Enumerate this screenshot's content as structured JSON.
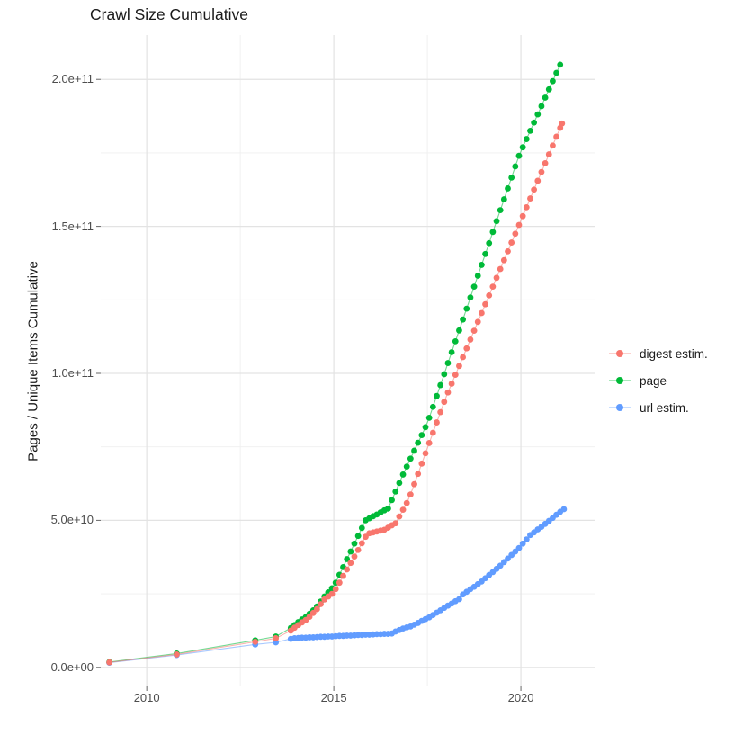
{
  "title": "Crawl Size Cumulative",
  "legend": {
    "items": [
      {
        "label": "digest estim.",
        "color": "#F8766D"
      },
      {
        "label": "page",
        "color": "#00BA38"
      },
      {
        "label": "url estim.",
        "color": "#619CFF"
      }
    ]
  },
  "colors": {
    "grid_major": "#e3e3e3",
    "grid_minor": "#efefef",
    "tick_mark": "#666666",
    "axis_text": "#4d4d4d",
    "title_text": "#1a1a1a"
  },
  "chart_data": {
    "type": "line",
    "title": "Crawl Size Cumulative",
    "xlabel": "",
    "ylabel": "Pages / Unique Items Cumulative",
    "value_unit": "1e9 pages (values below are billions)",
    "grid": true,
    "legend_position": "right",
    "x_range": [
      2008.77,
      2021.97
    ],
    "y_range_e9": [
      -6.49,
      215.06
    ],
    "x_ticks": {
      "major": [
        2010,
        2015,
        2020
      ],
      "minor": [
        2012.5,
        2017.5
      ],
      "labels": [
        "2010",
        "2015",
        "2020"
      ]
    },
    "y_ticks": {
      "major_e9": [
        0,
        50,
        100,
        150,
        200
      ],
      "minor_e9": [
        25,
        75,
        125,
        175
      ],
      "labels": [
        "0.0e+00",
        "5.0e+10",
        "1.0e+11",
        "1.5e+11",
        "2.0e+11"
      ]
    },
    "series": [
      {
        "name": "url estim.",
        "color": "#619CFF",
        "points": [
          [
            2009.0,
            1.6
          ],
          [
            2010.8,
            4.2
          ],
          [
            2012.9,
            7.8
          ],
          [
            2013.45,
            8.5
          ],
          [
            2013.85,
            9.7
          ],
          [
            2013.95,
            9.9
          ],
          [
            2014.05,
            10.0
          ],
          [
            2014.15,
            10.1
          ],
          [
            2014.25,
            10.1
          ],
          [
            2014.35,
            10.2
          ],
          [
            2014.45,
            10.2
          ],
          [
            2014.55,
            10.3
          ],
          [
            2014.65,
            10.4
          ],
          [
            2014.75,
            10.4
          ],
          [
            2014.85,
            10.5
          ],
          [
            2014.95,
            10.5
          ],
          [
            2015.05,
            10.6
          ],
          [
            2015.15,
            10.7
          ],
          [
            2015.25,
            10.7
          ],
          [
            2015.35,
            10.8
          ],
          [
            2015.45,
            10.8
          ],
          [
            2015.55,
            10.9
          ],
          [
            2015.65,
            11.0
          ],
          [
            2015.75,
            11.0
          ],
          [
            2015.85,
            11.1
          ],
          [
            2015.95,
            11.1
          ],
          [
            2016.05,
            11.2
          ],
          [
            2016.15,
            11.3
          ],
          [
            2016.25,
            11.3
          ],
          [
            2016.35,
            11.4
          ],
          [
            2016.45,
            11.4
          ],
          [
            2016.55,
            11.5
          ],
          [
            2016.65,
            12.2
          ],
          [
            2016.75,
            12.7
          ],
          [
            2016.85,
            13.2
          ],
          [
            2016.95,
            13.6
          ],
          [
            2017.05,
            13.9
          ],
          [
            2017.15,
            14.5
          ],
          [
            2017.25,
            15.1
          ],
          [
            2017.35,
            15.8
          ],
          [
            2017.45,
            16.4
          ],
          [
            2017.55,
            17.0
          ],
          [
            2017.65,
            17.8
          ],
          [
            2017.75,
            18.6
          ],
          [
            2017.85,
            19.4
          ],
          [
            2017.95,
            20.2
          ],
          [
            2018.05,
            21.0
          ],
          [
            2018.15,
            21.7
          ],
          [
            2018.25,
            22.5
          ],
          [
            2018.35,
            23.2
          ],
          [
            2018.45,
            24.8
          ],
          [
            2018.55,
            25.7
          ],
          [
            2018.65,
            26.6
          ],
          [
            2018.75,
            27.4
          ],
          [
            2018.85,
            28.3
          ],
          [
            2018.95,
            29.2
          ],
          [
            2019.05,
            30.3
          ],
          [
            2019.15,
            31.4
          ],
          [
            2019.25,
            32.4
          ],
          [
            2019.35,
            33.5
          ],
          [
            2019.45,
            34.6
          ],
          [
            2019.55,
            35.8
          ],
          [
            2019.65,
            37.0
          ],
          [
            2019.75,
            38.2
          ],
          [
            2019.85,
            39.4
          ],
          [
            2019.95,
            40.6
          ],
          [
            2020.05,
            42.1
          ],
          [
            2020.15,
            43.5
          ],
          [
            2020.25,
            45.0
          ],
          [
            2020.35,
            45.9
          ],
          [
            2020.45,
            46.9
          ],
          [
            2020.55,
            47.8
          ],
          [
            2020.65,
            48.8
          ],
          [
            2020.75,
            49.8
          ],
          [
            2020.85,
            50.8
          ],
          [
            2020.95,
            51.9
          ],
          [
            2021.05,
            52.9
          ],
          [
            2021.15,
            53.8
          ]
        ]
      },
      {
        "name": "page",
        "color": "#00BA38",
        "points": [
          [
            2009.0,
            1.8
          ],
          [
            2010.8,
            4.7
          ],
          [
            2012.9,
            9.2
          ],
          [
            2013.45,
            10.5
          ],
          [
            2013.85,
            13.4
          ],
          [
            2013.95,
            14.4
          ],
          [
            2014.05,
            15.4
          ],
          [
            2014.15,
            16.3
          ],
          [
            2014.25,
            17.1
          ],
          [
            2014.35,
            18.2
          ],
          [
            2014.45,
            19.4
          ],
          [
            2014.55,
            20.7
          ],
          [
            2014.65,
            22.4
          ],
          [
            2014.75,
            24.1
          ],
          [
            2014.85,
            25.5
          ],
          [
            2014.95,
            26.9
          ],
          [
            2015.05,
            28.8
          ],
          [
            2015.15,
            31.5
          ],
          [
            2015.25,
            34.1
          ],
          [
            2015.35,
            36.8
          ],
          [
            2015.45,
            39.4
          ],
          [
            2015.55,
            42.1
          ],
          [
            2015.65,
            44.7
          ],
          [
            2015.75,
            47.4
          ],
          [
            2015.85,
            50.0
          ],
          [
            2015.95,
            50.7
          ],
          [
            2016.05,
            51.4
          ],
          [
            2016.15,
            52.0
          ],
          [
            2016.25,
            52.7
          ],
          [
            2016.35,
            53.4
          ],
          [
            2016.45,
            54.0
          ],
          [
            2016.55,
            56.9
          ],
          [
            2016.65,
            59.8
          ],
          [
            2016.75,
            62.7
          ],
          [
            2016.85,
            65.6
          ],
          [
            2016.95,
            68.3
          ],
          [
            2017.05,
            71.0
          ],
          [
            2017.15,
            73.7
          ],
          [
            2017.25,
            76.4
          ],
          [
            2017.35,
            79.0
          ],
          [
            2017.45,
            81.7
          ],
          [
            2017.55,
            84.9
          ],
          [
            2017.65,
            88.6
          ],
          [
            2017.75,
            92.3
          ],
          [
            2017.85,
            96.0
          ],
          [
            2017.95,
            99.7
          ],
          [
            2018.05,
            103.5
          ],
          [
            2018.15,
            107.2
          ],
          [
            2018.25,
            110.9
          ],
          [
            2018.35,
            114.6
          ],
          [
            2018.45,
            118.3
          ],
          [
            2018.55,
            122.0
          ],
          [
            2018.65,
            125.8
          ],
          [
            2018.75,
            129.5
          ],
          [
            2018.85,
            133.2
          ],
          [
            2018.95,
            136.9
          ],
          [
            2019.05,
            140.6
          ],
          [
            2019.15,
            144.3
          ],
          [
            2019.25,
            148.1
          ],
          [
            2019.35,
            151.8
          ],
          [
            2019.45,
            155.5
          ],
          [
            2019.55,
            159.2
          ],
          [
            2019.65,
            162.9
          ],
          [
            2019.75,
            166.6
          ],
          [
            2019.85,
            170.4
          ],
          [
            2019.95,
            174.0
          ],
          [
            2020.05,
            176.9
          ],
          [
            2020.15,
            179.7
          ],
          [
            2020.25,
            182.5
          ],
          [
            2020.35,
            185.3
          ],
          [
            2020.45,
            188.1
          ],
          [
            2020.55,
            190.9
          ],
          [
            2020.65,
            193.8
          ],
          [
            2020.75,
            196.6
          ],
          [
            2020.85,
            199.4
          ],
          [
            2020.95,
            202.2
          ],
          [
            2021.05,
            205.0
          ]
        ]
      },
      {
        "name": "digest estim.",
        "color": "#F8766D",
        "points": [
          [
            2009.0,
            1.7
          ],
          [
            2010.8,
            4.4
          ],
          [
            2012.9,
            8.7
          ],
          [
            2013.45,
            9.9
          ],
          [
            2013.85,
            12.5
          ],
          [
            2013.95,
            13.5
          ],
          [
            2014.05,
            14.4
          ],
          [
            2014.15,
            15.3
          ],
          [
            2014.25,
            16.1
          ],
          [
            2014.35,
            17.2
          ],
          [
            2014.45,
            18.5
          ],
          [
            2014.55,
            19.8
          ],
          [
            2014.65,
            21.5
          ],
          [
            2014.75,
            23.1
          ],
          [
            2014.85,
            24.1
          ],
          [
            2014.95,
            25.0
          ],
          [
            2015.05,
            26.6
          ],
          [
            2015.15,
            28.8
          ],
          [
            2015.25,
            31.1
          ],
          [
            2015.35,
            33.3
          ],
          [
            2015.45,
            35.5
          ],
          [
            2015.55,
            37.7
          ],
          [
            2015.65,
            39.9
          ],
          [
            2015.75,
            42.2
          ],
          [
            2015.85,
            44.4
          ],
          [
            2015.95,
            45.6
          ],
          [
            2016.05,
            45.9
          ],
          [
            2016.15,
            46.2
          ],
          [
            2016.25,
            46.5
          ],
          [
            2016.35,
            46.8
          ],
          [
            2016.45,
            47.5
          ],
          [
            2016.55,
            48.3
          ],
          [
            2016.65,
            49.0
          ],
          [
            2016.75,
            51.3
          ],
          [
            2016.85,
            53.6
          ],
          [
            2016.95,
            55.9
          ],
          [
            2017.05,
            58.8
          ],
          [
            2017.15,
            62.3
          ],
          [
            2017.25,
            65.8
          ],
          [
            2017.35,
            69.3
          ],
          [
            2017.45,
            72.8
          ],
          [
            2017.55,
            76.3
          ],
          [
            2017.65,
            79.8
          ],
          [
            2017.75,
            83.3
          ],
          [
            2017.85,
            86.8
          ],
          [
            2017.95,
            90.3
          ],
          [
            2018.05,
            93.5
          ],
          [
            2018.15,
            96.5
          ],
          [
            2018.25,
            99.5
          ],
          [
            2018.35,
            102.5
          ],
          [
            2018.45,
            105.5
          ],
          [
            2018.55,
            108.5
          ],
          [
            2018.65,
            111.5
          ],
          [
            2018.75,
            114.5
          ],
          [
            2018.85,
            117.5
          ],
          [
            2018.95,
            120.5
          ],
          [
            2019.05,
            123.5
          ],
          [
            2019.15,
            126.5
          ],
          [
            2019.25,
            129.5
          ],
          [
            2019.35,
            132.5
          ],
          [
            2019.45,
            135.5
          ],
          [
            2019.55,
            138.5
          ],
          [
            2019.65,
            141.5
          ],
          [
            2019.75,
            144.5
          ],
          [
            2019.85,
            147.5
          ],
          [
            2019.95,
            150.5
          ],
          [
            2020.05,
            153.5
          ],
          [
            2020.15,
            156.5
          ],
          [
            2020.25,
            159.5
          ],
          [
            2020.35,
            162.5
          ],
          [
            2020.45,
            165.5
          ],
          [
            2020.55,
            168.5
          ],
          [
            2020.65,
            171.5
          ],
          [
            2020.75,
            174.5
          ],
          [
            2020.85,
            177.5
          ],
          [
            2020.95,
            180.5
          ],
          [
            2021.05,
            183.5
          ],
          [
            2021.1,
            185.0
          ]
        ]
      }
    ]
  }
}
